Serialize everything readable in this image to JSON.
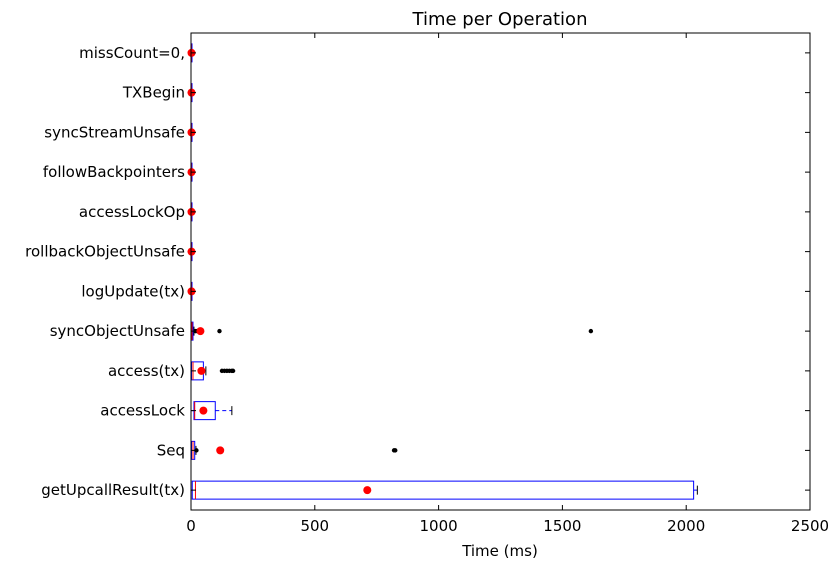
{
  "chart_data": {
    "type": "boxplot",
    "orientation": "horizontal",
    "title": "Time per Operation",
    "xlabel": "Time (ms)",
    "ylabel": "",
    "xlim": [
      0,
      2500
    ],
    "xticks": [
      0,
      500,
      1000,
      1500,
      2000,
      2500
    ],
    "grid": false,
    "colors": {
      "box": "#0000ff",
      "median": "#ff0000",
      "mean": "#ff0000",
      "flier": "#000000"
    },
    "categories": [
      "missCount=0,",
      "TXBegin",
      "syncStreamUnsafe",
      "followBackpointers",
      "accessLockOp",
      "rollbackObjectUnsafe",
      "logUpdate(tx)",
      "syncObjectUnsafe",
      "access(tx)",
      "accessLock",
      "Seq",
      "getUpcallResult(tx)"
    ],
    "boxes": [
      {
        "label": "missCount=0,",
        "whisker_low": 0,
        "q1": 0,
        "median": 1,
        "q3": 2,
        "whisker_high": 4,
        "mean": 2,
        "fliers": []
      },
      {
        "label": "TXBegin",
        "whisker_low": 0,
        "q1": 0,
        "median": 1,
        "q3": 2,
        "whisker_high": 4,
        "mean": 2,
        "fliers": []
      },
      {
        "label": "syncStreamUnsafe",
        "whisker_low": 0,
        "q1": 0,
        "median": 1,
        "q3": 2,
        "whisker_high": 4,
        "mean": 2,
        "fliers": [
          6,
          8
        ]
      },
      {
        "label": "followBackpointers",
        "whisker_low": 0,
        "q1": 0,
        "median": 1,
        "q3": 2,
        "whisker_high": 4,
        "mean": 2,
        "fliers": [
          6,
          8
        ]
      },
      {
        "label": "accessLockOp",
        "whisker_low": 0,
        "q1": 0,
        "median": 1,
        "q3": 2,
        "whisker_high": 4,
        "mean": 2,
        "fliers": []
      },
      {
        "label": "rollbackObjectUnsafe",
        "whisker_low": 0,
        "q1": 0,
        "median": 1,
        "q3": 2,
        "whisker_high": 4,
        "mean": 2,
        "fliers": [
          6,
          8
        ]
      },
      {
        "label": "logUpdate(tx)",
        "whisker_low": 0,
        "q1": 0,
        "median": 1,
        "q3": 2,
        "whisker_high": 4,
        "mean": 2,
        "fliers": []
      },
      {
        "label": "syncObjectUnsafe",
        "whisker_low": 0,
        "q1": 2,
        "median": 4,
        "q3": 8,
        "whisker_high": 12,
        "mean": 38,
        "fliers": [
          18,
          25,
          115,
          1615
        ]
      },
      {
        "label": "access(tx)",
        "whisker_low": 0,
        "q1": 2,
        "median": 8,
        "q3": 50,
        "whisker_high": 60,
        "mean": 42,
        "fliers": [
          125,
          135,
          145,
          155,
          165,
          170
        ]
      },
      {
        "label": "accessLock",
        "whisker_low": 0,
        "q1": 12,
        "median": 15,
        "q3": 98,
        "whisker_high": 165,
        "mean": 50,
        "fliers": []
      },
      {
        "label": "Seq",
        "whisker_low": 0,
        "q1": 2,
        "median": 8,
        "q3": 15,
        "whisker_high": 20,
        "mean": 118,
        "fliers": [
          22,
          115,
          120,
          820,
          825
        ]
      },
      {
        "label": "getUpcallResult(tx)",
        "whisker_low": 0,
        "q1": 5,
        "median": 18,
        "q3": 2030,
        "whisker_high": 2045,
        "mean": 712,
        "fliers": []
      }
    ]
  }
}
